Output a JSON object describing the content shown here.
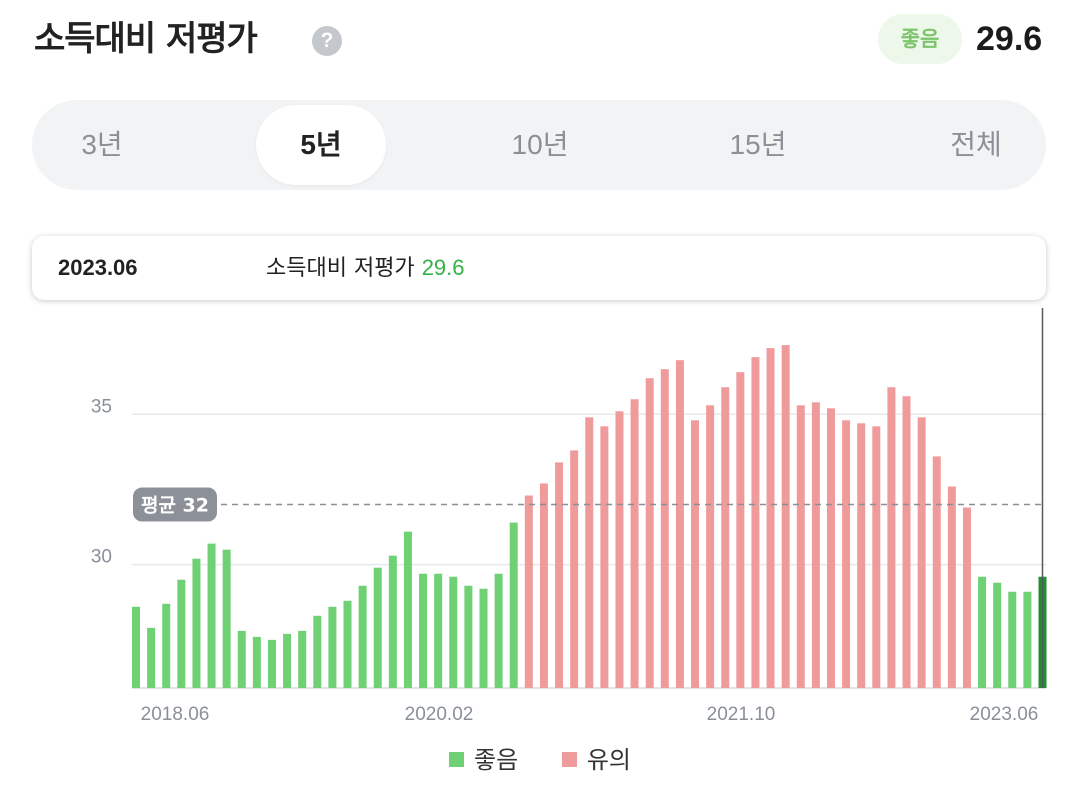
{
  "header": {
    "title": "소득대비 저평가",
    "help_icon": "question-circle-icon",
    "badge_label": "좋음",
    "score": "29.6"
  },
  "tabs": [
    {
      "label": "3년",
      "active": false
    },
    {
      "label": "5년",
      "active": true
    },
    {
      "label": "10년",
      "active": false
    },
    {
      "label": "15년",
      "active": false
    },
    {
      "label": "전체",
      "active": false
    }
  ],
  "tooltip": {
    "date": "2023.06",
    "label": "소득대비 저평가",
    "value": "29.6"
  },
  "chart_data": {
    "type": "bar",
    "x_tick_labels": [
      "2018.06",
      "2020.02",
      "2021.10",
      "2023.06"
    ],
    "y_ticks": [
      30,
      35
    ],
    "ylim": [
      25.9,
      38.8
    ],
    "grid": true,
    "average": {
      "label": "평균 32",
      "value": 32
    },
    "colors": {
      "good": "#6fd173",
      "caution": "#f09b9b",
      "selected": "#1f8f2f",
      "avg_badge": "#8c9199"
    },
    "legend": [
      {
        "name": "좋음",
        "color": "#6fd173"
      },
      {
        "name": "유의",
        "color": "#f09b9b"
      }
    ],
    "legend_position": "bottom",
    "selected_index": 60,
    "values": [
      28.6,
      27.9,
      28.7,
      29.5,
      30.2,
      30.7,
      30.5,
      27.8,
      27.6,
      27.5,
      27.7,
      27.8,
      28.3,
      28.6,
      28.8,
      29.3,
      29.9,
      30.3,
      31.1,
      29.7,
      29.7,
      29.6,
      29.3,
      29.2,
      29.7,
      31.4,
      32.3,
      32.7,
      33.4,
      33.8,
      34.9,
      34.6,
      35.1,
      35.5,
      36.2,
      36.5,
      36.8,
      34.8,
      35.3,
      35.9,
      36.4,
      36.9,
      37.2,
      37.3,
      35.3,
      35.4,
      35.2,
      34.8,
      34.7,
      34.6,
      35.9,
      35.6,
      34.9,
      33.6,
      32.6,
      31.9,
      29.6,
      29.4,
      29.1,
      29.1,
      29.6
    ],
    "series": [
      {
        "name": "좋음",
        "indices": [
          0,
          1,
          2,
          3,
          4,
          5,
          6,
          7,
          8,
          9,
          10,
          11,
          12,
          13,
          14,
          15,
          16,
          17,
          18,
          19,
          20,
          21,
          22,
          23,
          24,
          25,
          56,
          57,
          58,
          59,
          60
        ]
      },
      {
        "name": "유의",
        "indices": [
          26,
          27,
          28,
          29,
          30,
          31,
          32,
          33,
          34,
          35,
          36,
          37,
          38,
          39,
          40,
          41,
          42,
          43,
          44,
          45,
          46,
          47,
          48,
          49,
          50,
          51,
          52,
          53,
          54,
          55
        ]
      }
    ]
  }
}
